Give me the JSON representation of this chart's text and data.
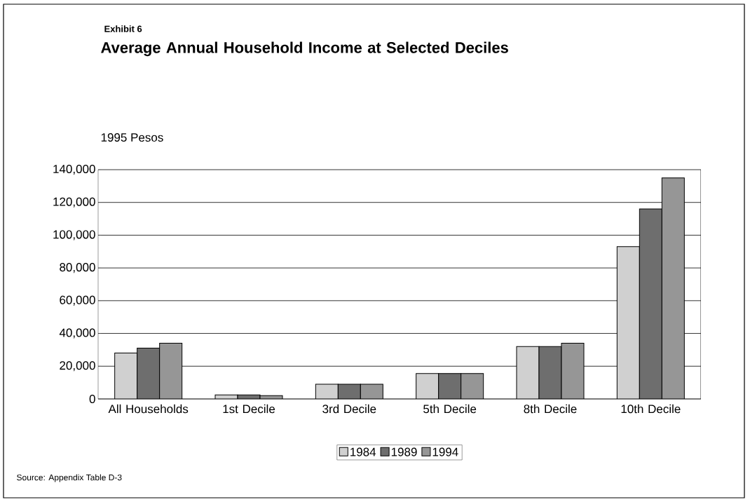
{
  "chart_data": {
    "type": "bar",
    "title": "Average Annual Household Income at Selected Deciles",
    "ylabel": "1995 Pesos",
    "annotations": [
      "Exhibit 6",
      "Source: Appendix Table D-3"
    ],
    "categories": [
      "All Households",
      "1st Decile",
      "3rd Decile",
      "5th Decile",
      "8th Decile",
      "10th Decile"
    ],
    "series": [
      {
        "name": "1984",
        "color": "#d0d0d0",
        "values": [
          28000,
          2500,
          9000,
          15500,
          32000,
          93000
        ]
      },
      {
        "name": "1989",
        "color": "#6e6e6e",
        "values": [
          31000,
          2500,
          9000,
          15500,
          32000,
          116000
        ]
      },
      {
        "name": "1994",
        "color": "#969696",
        "values": [
          34000,
          2000,
          9000,
          15500,
          34000,
          135000
        ]
      }
    ],
    "ylim": [
      0,
      140000
    ],
    "yticks": [
      {
        "value": 0,
        "label": "0"
      },
      {
        "value": 20000,
        "label": "20,000"
      },
      {
        "value": 40000,
        "label": "40,000"
      },
      {
        "value": 60000,
        "label": "60,000"
      },
      {
        "value": 80000,
        "label": "80,000"
      },
      {
        "value": 100000,
        "label": "100,000"
      },
      {
        "value": 120000,
        "label": "120,000"
      },
      {
        "value": 140000,
        "label": "140,000"
      }
    ],
    "grid": "y",
    "legend": "bottom"
  }
}
